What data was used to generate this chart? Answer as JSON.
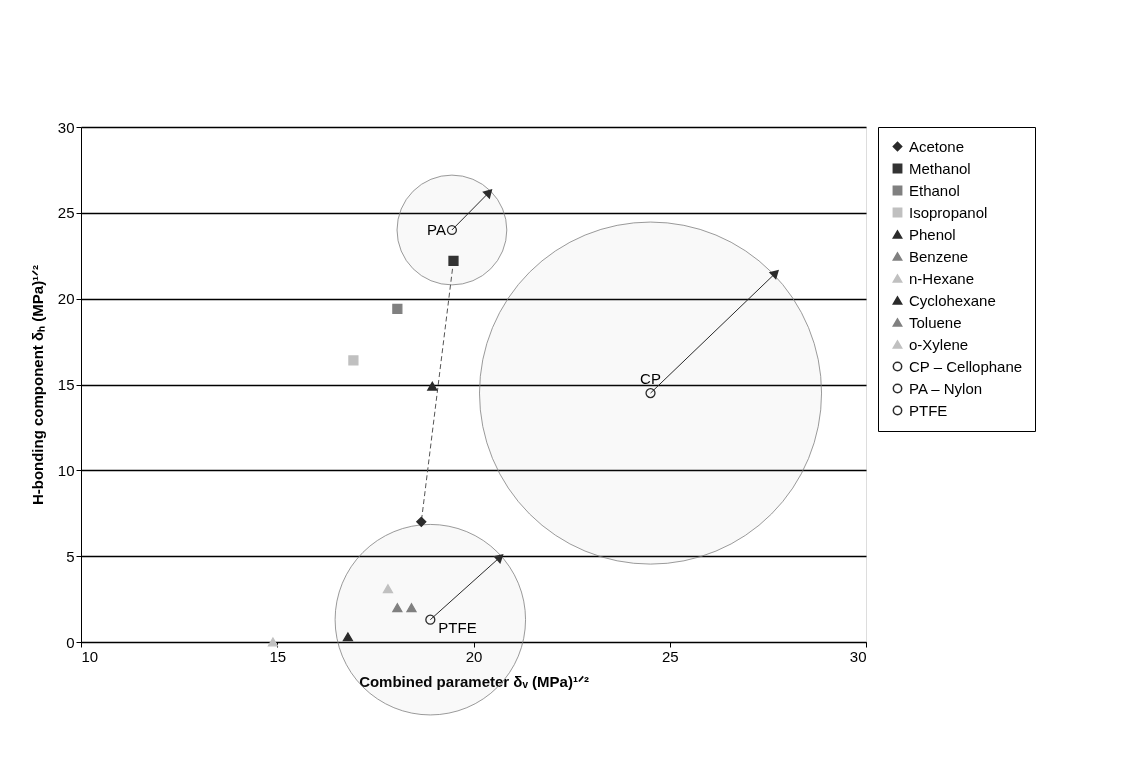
{
  "chart_data": {
    "type": "scatter",
    "xlabel": "Combined parameter δᵥ (MPa)¹ᐟ²",
    "ylabel": "H-bonding component δₕ (MPa)¹ᐟ²",
    "xlim": [
      10,
      30
    ],
    "xticks": [
      10,
      15,
      20,
      25,
      30
    ],
    "ylim": [
      0,
      30
    ],
    "yticks": [
      0,
      5,
      10,
      15,
      20,
      25,
      30
    ],
    "grid": "y",
    "legend": "right",
    "series": [
      {
        "name": "Acetone",
        "marker": "diamond",
        "color": "#2b2b2b",
        "x": [
          18.67
        ],
        "values": [
          7.0
        ]
      },
      {
        "name": "Methanol",
        "marker": "square",
        "color": "#333333",
        "x": [
          19.49
        ],
        "values": [
          22.2
        ]
      },
      {
        "name": "Ethanol",
        "marker": "square",
        "color": "#808080",
        "x": [
          18.06
        ],
        "values": [
          19.4
        ]
      },
      {
        "name": "Isopropanol",
        "marker": "square",
        "color": "#c0c0c0",
        "x": [
          16.94
        ],
        "values": [
          16.4
        ]
      },
      {
        "name": "Phenol",
        "marker": "triangle",
        "color": "#2b2b2b",
        "x": [
          18.95
        ],
        "values": [
          14.9
        ]
      },
      {
        "name": "Benzene",
        "marker": "triangle",
        "color": "#808080",
        "x": [
          18.42
        ],
        "values": [
          2.0
        ]
      },
      {
        "name": "n-Hexane",
        "marker": "triangle",
        "color": "#c0c0c0",
        "x": [
          14.89
        ],
        "values": [
          0.0
        ]
      },
      {
        "name": "Cyclohexane",
        "marker": "triangle",
        "color": "#2b2b2b",
        "x": [
          16.8
        ],
        "values": [
          0.3
        ]
      },
      {
        "name": "Toluene",
        "marker": "triangle",
        "color": "#808080",
        "x": [
          18.06
        ],
        "values": [
          2.0
        ]
      },
      {
        "name": "o-Xylene",
        "marker": "triangle",
        "color": "#c0c0c0",
        "x": [
          17.82
        ],
        "values": [
          3.1
        ]
      },
      {
        "name": "CP – Cellophane",
        "marker": "circle",
        "color": "#2b2b2b",
        "x": [
          24.51
        ],
        "values": [
          14.5
        ]
      },
      {
        "name": "PA – Nylon",
        "marker": "circle",
        "color": "#2b2b2b",
        "x": [
          19.45
        ],
        "values": [
          24.0
        ]
      },
      {
        "name": "PTFE",
        "marker": "circle",
        "color": "#2b2b2b",
        "x": [
          18.9
        ],
        "values": [
          1.3
        ]
      },
      {
        "type": "bubble",
        "color": "#808080",
        "x": [
          24.51,
          19.45,
          18.9
        ],
        "values": [
          14.5,
          24.0,
          1.3
        ],
        "sizes": [
          1,
          0.103,
          0.31
        ]
      },
      {
        "type": "line",
        "color": "#2b2b2b",
        "line_style": "solid",
        "x": [
          24.51,
          27.7
        ],
        "values": [
          14.5,
          21.5
        ]
      },
      {
        "type": "line",
        "color": "#2b2b2b",
        "line_style": "solid",
        "x": [
          19.45,
          20.4
        ],
        "values": [
          24.0,
          26.2
        ]
      },
      {
        "type": "line",
        "color": "#2b2b2b",
        "line_style": "solid",
        "x": [
          18.9,
          20.68
        ],
        "values": [
          1.3,
          4.95
        ]
      },
      {
        "type": "line",
        "color": "#555555",
        "line_style": "dashed",
        "x": [
          19.49,
          18.67
        ],
        "values": [
          22.2,
          7.0
        ]
      }
    ],
    "annotations": [
      {
        "text": "PA",
        "x": 19.45,
        "y": 24.0
      },
      {
        "text": "CP",
        "x": 24.51,
        "y": 14.5
      },
      {
        "text": "PTFE",
        "x": 18.9,
        "y": 1.3
      }
    ]
  }
}
